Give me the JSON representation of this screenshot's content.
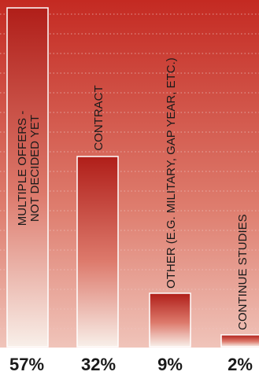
{
  "chart_data": {
    "type": "bar",
    "categories": [
      "MULTIPLE OFFERS - NOT DECIDED YET",
      "CONTRACT",
      "OTHER (E.G. MILITARY, GAP YEAR, ETC.)",
      "CONTINUE STUDIES"
    ],
    "label_lines": [
      [
        "MULTIPLE OFFERS -",
        "NOT DECIDED YET"
      ],
      [
        "CONTRACT"
      ],
      [
        "OTHER  (E.G. MILITARY, GAP YEAR, ETC.)"
      ],
      [
        "CONTINUE STUDIES"
      ]
    ],
    "values": [
      57,
      32,
      9,
      2
    ],
    "value_labels": [
      "57%",
      "32%",
      "9%",
      "2%"
    ],
    "ylim": [
      0,
      57
    ],
    "grid": true,
    "colors": {
      "background": "#c8281f",
      "bar_top": "#b01e19",
      "bar_bottom": "#f8efe9",
      "grid": "#f0c8c4",
      "text": "#1a1a1a"
    }
  }
}
